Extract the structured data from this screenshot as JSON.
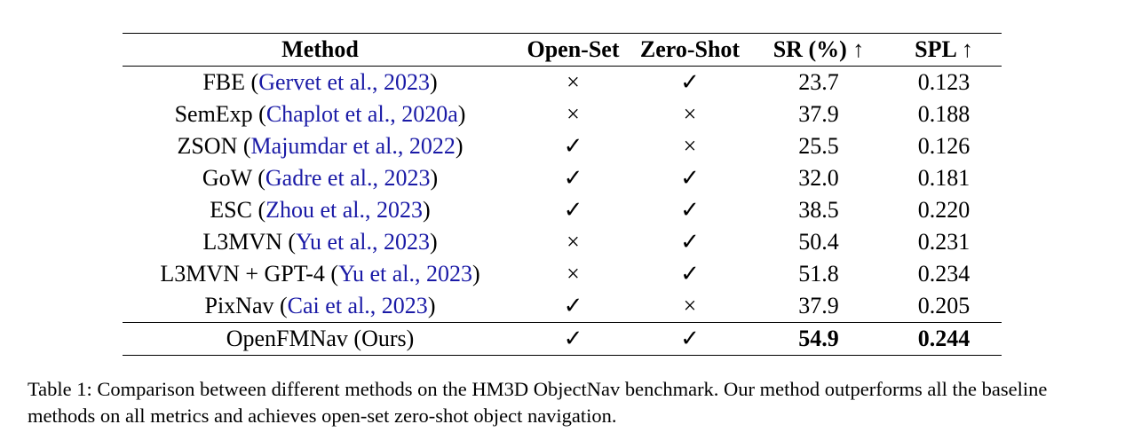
{
  "table": {
    "headers": {
      "method": "Method",
      "open_set": "Open-Set",
      "zero_shot": "Zero-Shot",
      "sr": "SR (%) ↑",
      "spl": "SPL ↑"
    },
    "rows": [
      {
        "name": "FBE",
        "cite": "Gervet et al., 2023",
        "open_set": "×",
        "zero_shot": "✓",
        "sr": "23.7",
        "spl": "0.123"
      },
      {
        "name": "SemExp",
        "cite": "Chaplot et al., 2020a",
        "open_set": "×",
        "zero_shot": "×",
        "sr": "37.9",
        "spl": "0.188"
      },
      {
        "name": "ZSON",
        "cite": "Majumdar et al., 2022",
        "open_set": "✓",
        "zero_shot": "×",
        "sr": "25.5",
        "spl": "0.126"
      },
      {
        "name": "GoW",
        "cite": "Gadre et al., 2023",
        "open_set": "✓",
        "zero_shot": "✓",
        "sr": "32.0",
        "spl": "0.181"
      },
      {
        "name": "ESC",
        "cite": "Zhou et al., 2023",
        "open_set": "✓",
        "zero_shot": "✓",
        "sr": "38.5",
        "spl": "0.220"
      },
      {
        "name": "L3MVN",
        "cite": "Yu et al., 2023",
        "open_set": "×",
        "zero_shot": "✓",
        "sr": "50.4",
        "spl": "0.231"
      },
      {
        "name": "L3MVN + GPT-4",
        "cite": "Yu et al., 2023",
        "open_set": "×",
        "zero_shot": "✓",
        "sr": "51.8",
        "spl": "0.234"
      },
      {
        "name": "PixNav",
        "cite": "Cai et al., 2023",
        "open_set": "✓",
        "zero_shot": "×",
        "sr": "37.9",
        "spl": "0.205"
      }
    ],
    "ours": {
      "name": "OpenFMNav (Ours)",
      "open_set": "✓",
      "zero_shot": "✓",
      "sr": "54.9",
      "spl": "0.244"
    }
  },
  "caption": {
    "label": "Table 1:",
    "text": "Comparison between different methods on the HM3D ObjectNav benchmark. Our method outperforms all the baseline methods on all metrics and achieves open-set zero-shot object navigation."
  },
  "colors": {
    "citation": "#1a1aa6",
    "text": "#000000"
  }
}
